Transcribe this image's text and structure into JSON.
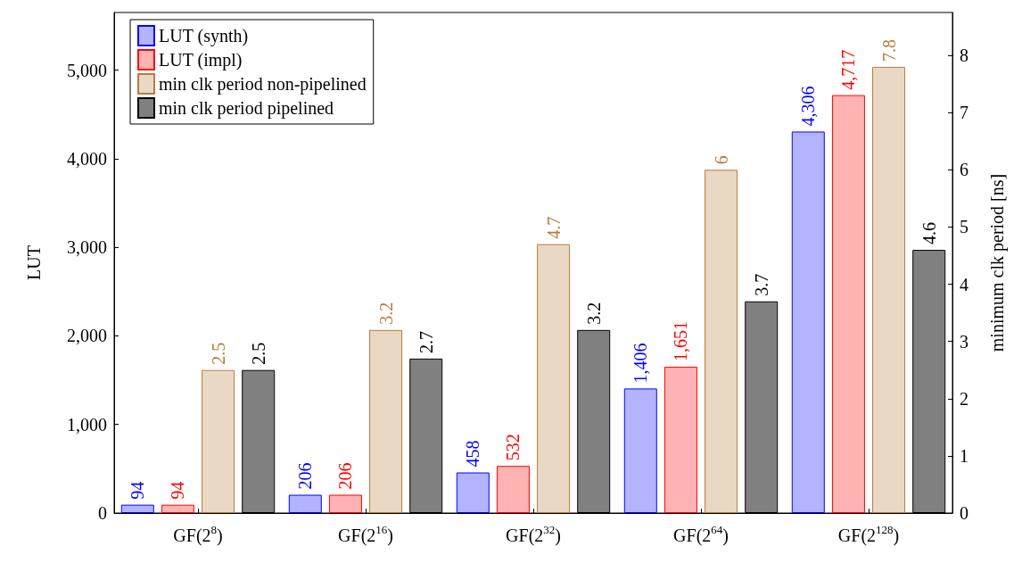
{
  "chart_data": {
    "type": "bar",
    "ylabel": "LUT",
    "y2label": "minimum clk period [ns]",
    "categories": [
      "GF(2$^{8}$)",
      "GF(2$^{16}$)",
      "GF(2$^{32}$)",
      "GF(2$^{64}$)",
      "GF(2$^{128}$)"
    ],
    "series": [
      {
        "name": "LUT (synth)",
        "color": "#b3b3ff",
        "values": [
          94,
          206,
          458,
          1406,
          4306
        ],
        "value_labels": [
          "94",
          "206",
          "458",
          "1,406",
          "4,306"
        ]
      },
      {
        "name": "LUT (impl)",
        "color": "#ffb3b3",
        "values": [
          94,
          206,
          532,
          1651,
          4717
        ],
        "value_labels": [
          "94",
          "206",
          "532",
          "1,651",
          "4,717"
        ]
      },
      {
        "name": "min clk period non-pipelined",
        "color": "#e9d8c4",
        "axis": "y2",
        "values": [
          2.5,
          3.2,
          4.7,
          6,
          7.8
        ],
        "value_labels": [
          "2.5",
          "3.2",
          "4.7",
          "6",
          "7.8"
        ]
      },
      {
        "name": "min clk period pipelined",
        "color": "#808080",
        "axis": "y2",
        "values": [
          2.5,
          2.7,
          3.2,
          3.7,
          4.6
        ],
        "value_labels": [
          "2.5",
          "2.7",
          "3.2",
          "3.7",
          "4.6"
        ]
      }
    ],
    "ylim": [
      0,
      5650
    ],
    "yticks": [
      0,
      {
        "value": 1000,
        "label": "1,000"
      },
      {
        "value": 2000,
        "label": "2,000"
      },
      {
        "value": 3000,
        "label": "3,000"
      },
      {
        "value": 4000,
        "label": "4,000"
      },
      {
        "value": 5000,
        "label": "5,000"
      }
    ],
    "y2lim": [
      0,
      8.75
    ],
    "y2ticks": [
      0,
      1,
      2,
      3,
      4,
      5,
      6,
      7,
      8
    ],
    "legend": "top left",
    "grid": false
  }
}
